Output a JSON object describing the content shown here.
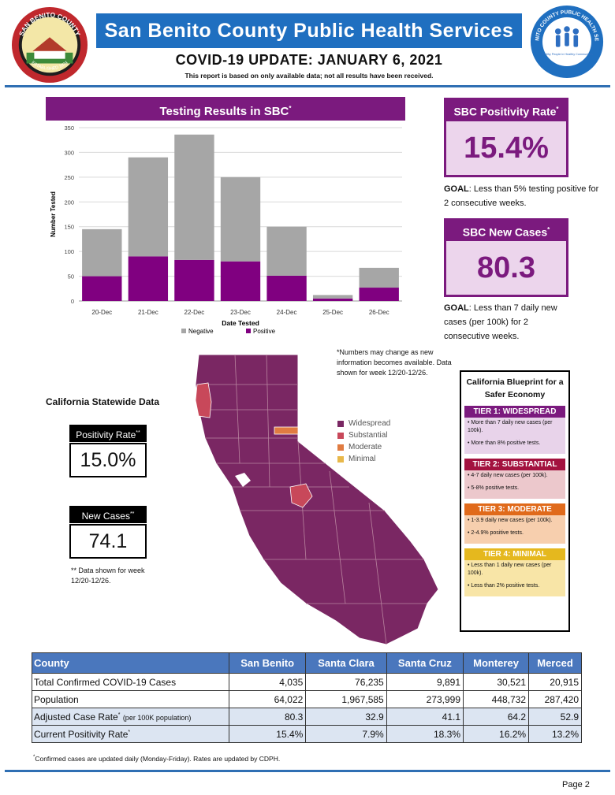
{
  "header": {
    "title": "San Benito County Public Health Services",
    "update": "COVID-19 UPDATE: JANUARY 6, 2021",
    "note": "This report is based on only available data; not all results have been received.",
    "seal_text": "SAN BENITO COUNTY",
    "seal_bottom": "ESTABLISHED 1874",
    "logo_text": "SAN BENITO COUNTY PUBLIC HEALTH SERVICES",
    "logo_tagline": "Healthy People in Healthy Communities"
  },
  "testing": {
    "title": "Testing Results in SBC",
    "title_mark": "*"
  },
  "chart_data": {
    "type": "bar",
    "stacked": true,
    "title": "Testing Results in SBC*",
    "xlabel": "Date Tested",
    "ylabel": "Number Tested",
    "ylim": [
      0,
      350
    ],
    "yticks": [
      0,
      50,
      100,
      150,
      200,
      250,
      300,
      350
    ],
    "categories": [
      "20-Dec",
      "21-Dec",
      "22-Dec",
      "23-Dec",
      "24-Dec",
      "25-Dec",
      "26-Dec"
    ],
    "series": [
      {
        "name": "Positive",
        "color": "#800080",
        "values": [
          50,
          90,
          83,
          80,
          51,
          5,
          27
        ]
      },
      {
        "name": "Negative",
        "color": "#a6a6a6",
        "values": [
          95,
          200,
          253,
          170,
          99,
          7,
          40
        ]
      }
    ],
    "legend": [
      "Negative",
      "Positive"
    ]
  },
  "positivity": {
    "title": "SBC Positivity Rate",
    "mark": "*",
    "value": "15.4%",
    "goal_label": "GOAL",
    "goal_text": ": Less than 5% testing positive for 2 consecutive weeks."
  },
  "new_cases": {
    "title": "SBC New Cases",
    "mark": "*",
    "value": "80.3",
    "goal_label": "GOAL",
    "goal_text": ": Less than 7 daily new cases (per 100k) for 2 consecutive weeks."
  },
  "map_note": "*Numbers may change as new information becomes available. Data shown for week 12/20-12/26.",
  "statewide": {
    "title": "California Statewide Data",
    "positivity_label": "Positivity Rate",
    "positivity_mark": "**",
    "positivity_value": "15.0%",
    "cases_label": "New Cases",
    "cases_mark": "**",
    "cases_value": "74.1",
    "note": "** Data shown for week 12/20-12/26."
  },
  "legend": [
    {
      "label": "Widespread",
      "color": "#7a2763"
    },
    {
      "label": "Substantial",
      "color": "#c8485a"
    },
    {
      "label": "Moderate",
      "color": "#e07b41"
    },
    {
      "label": "Minimal",
      "color": "#e8b84a"
    }
  ],
  "blueprint": {
    "title": "California Blueprint for a Safer Economy",
    "tiers": [
      {
        "head": "TIER 1: WIDESPREAD",
        "head_color": "#7b1a7e",
        "body_color": "#e8d3ea",
        "lines": [
          "• More than 7 daily new cases (per 100k).",
          "• More than 8% positive tests."
        ]
      },
      {
        "head": "TIER 2: SUBSTANTIAL",
        "head_color": "#a3123f",
        "body_color": "#ecc8cc",
        "lines": [
          "• 4-7 daily new cases (per 100k).",
          "• 5-8% positive tests."
        ]
      },
      {
        "head": "TIER 3: MODERATE",
        "head_color": "#e06a1b",
        "body_color": "#f7cfae",
        "lines": [
          "• 1-3.9 daily new cases (per 100k).",
          "• 2-4.9% positive tests."
        ]
      },
      {
        "head": "TIER 4: MINIMAL",
        "head_color": "#e5b81e",
        "body_color": "#f8e5a7",
        "lines": [
          "• Less than 1 daily new cases (per 100k).",
          "• Less than 2% positive tests."
        ]
      }
    ]
  },
  "county_table": {
    "headers": [
      "County",
      "San Benito",
      "Santa Clara",
      "Santa Cruz",
      "Monterey",
      "Merced"
    ],
    "rows": [
      {
        "label": "Total Confirmed COVID-19 Cases",
        "mark": "",
        "note": "",
        "values": [
          "4,035",
          "76,235",
          "9,891",
          "30,521",
          "20,915"
        ]
      },
      {
        "label": "Population",
        "mark": "",
        "note": "",
        "values": [
          "64,022",
          "1,967,585",
          "273,999",
          "448,732",
          "287,420"
        ]
      },
      {
        "label": "Adjusted Case Rate",
        "mark": "*",
        "note": "(per 100K population)",
        "values": [
          "80.3",
          "32.9",
          "41.1",
          "64.2",
          "52.9"
        ]
      },
      {
        "label": "Current Positivity Rate",
        "mark": "*",
        "note": "",
        "values": [
          "15.4%",
          "7.9%",
          "18.3%",
          "16.2%",
          "13.2%"
        ]
      }
    ]
  },
  "footnote": {
    "mark": "*",
    "text": "Confirmed cases are updated daily (Monday-Friday). Rates are updated by CDPH."
  },
  "page_label": "Page 2"
}
